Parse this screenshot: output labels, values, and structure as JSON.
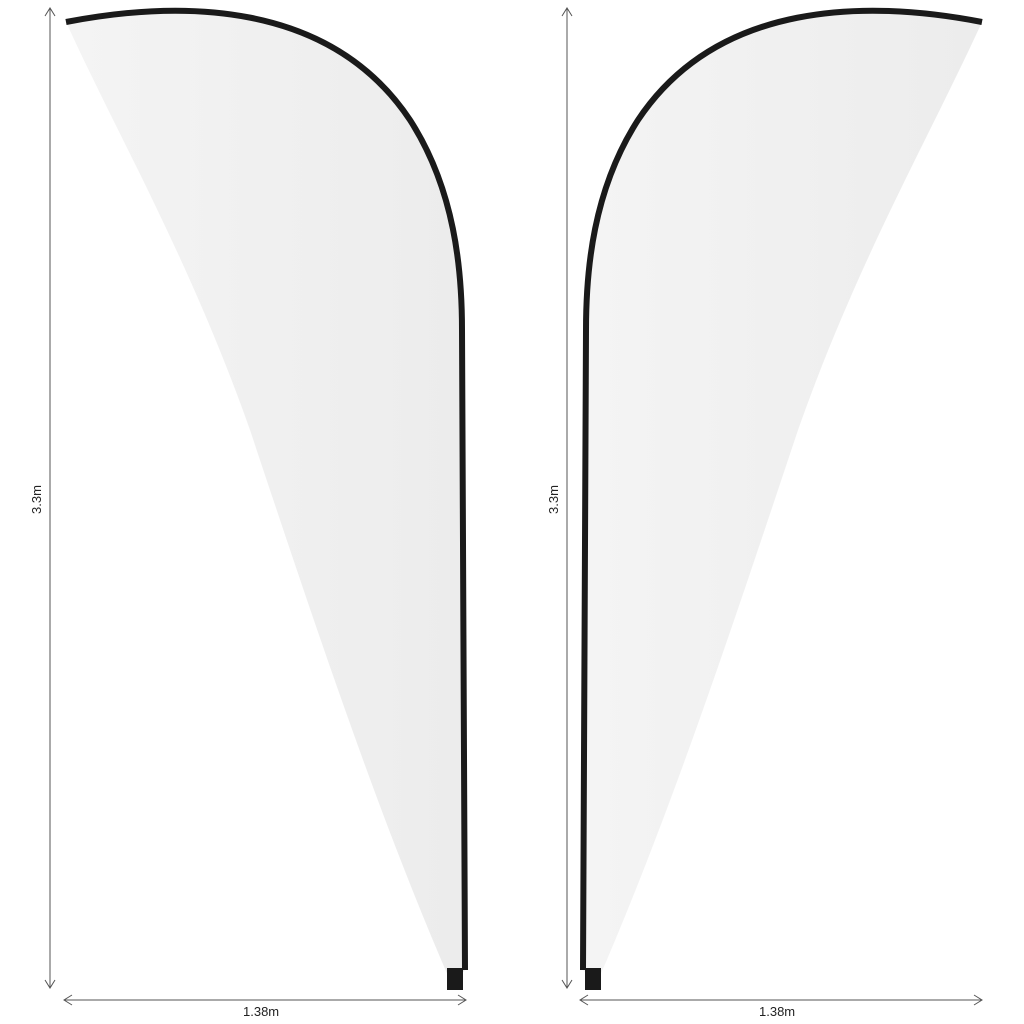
{
  "left_flag": {
    "height_label": "3.3m",
    "width_label": "1.38m"
  },
  "right_flag": {
    "height_label": "3.3m",
    "width_label": "1.38m"
  },
  "colors": {
    "fabric": "#efefef",
    "pole": "#1a1a1a",
    "dimension_line": "#555555"
  }
}
